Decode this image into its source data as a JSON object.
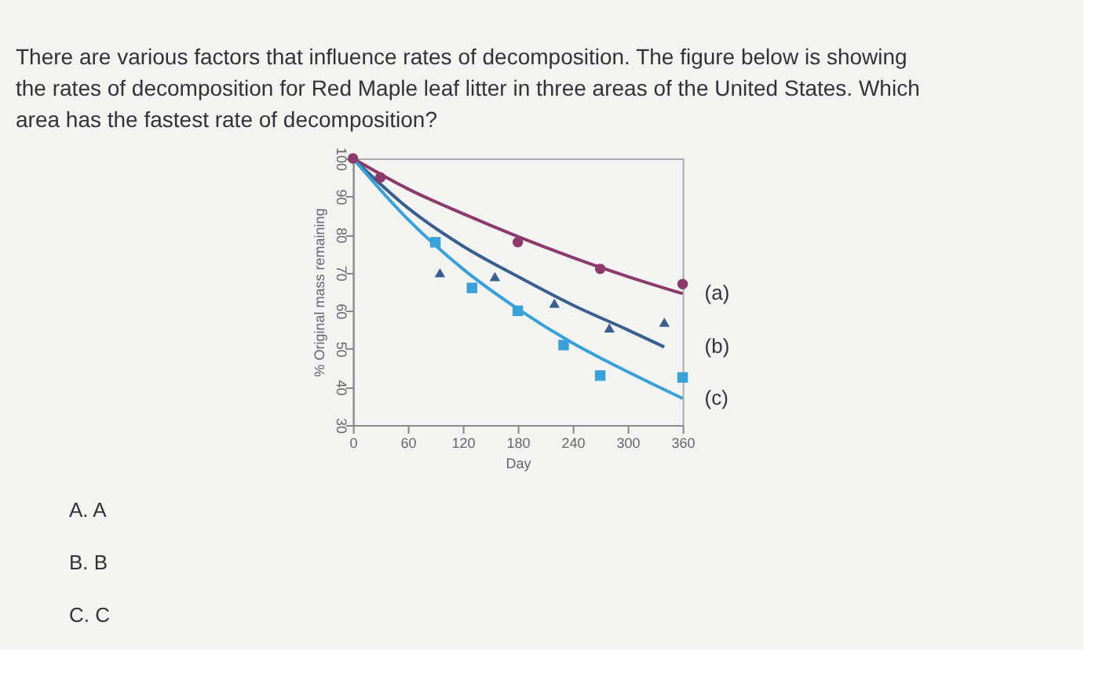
{
  "chart_data": {
    "type": "line",
    "title": "There are various factors that influence rates of decomposition. The figure below is showing the rates of decomposition for Red Maple leaf litter in three areas of the United States. Which area has the fastest rate of decomposition?",
    "xlabel": "Day",
    "ylabel": "% Original mass remaining",
    "xlim": [
      0,
      360
    ],
    "xticks": [
      0,
      60,
      120,
      180,
      240,
      300,
      360
    ],
    "ylim": [
      30,
      100
    ],
    "yticks": [
      30,
      40,
      50,
      60,
      70,
      80,
      90,
      100
    ],
    "grid": false,
    "series": [
      {
        "name": "(a)",
        "type": "line",
        "color": "#8b3a6b",
        "x": [
          0,
          60,
          120,
          180,
          240,
          300,
          360
        ],
        "values": [
          100,
          92,
          85.5,
          79.5,
          74,
          69,
          64.5
        ]
      },
      {
        "name": "(b)",
        "type": "line",
        "color": "#3a5f8f",
        "x": [
          0,
          60,
          120,
          180,
          240,
          300,
          340
        ],
        "values": [
          100,
          87,
          77,
          69,
          61.5,
          55,
          50.5
        ]
      },
      {
        "name": "(c)",
        "type": "line",
        "color": "#3aa0d8",
        "x": [
          0,
          60,
          120,
          180,
          240,
          300,
          360
        ],
        "values": [
          100,
          84,
          71,
          60.5,
          51.5,
          44,
          37
        ]
      },
      {
        "type": "scatter",
        "marker": "circle",
        "color": "#8b3a6b",
        "x": [
          0,
          30,
          180,
          270,
          360
        ],
        "values": [
          100,
          95,
          78,
          71,
          67
        ]
      },
      {
        "type": "scatter",
        "marker": "triangle",
        "color": "#3a5f8f",
        "x": [
          95,
          155,
          220,
          280,
          340
        ],
        "values": [
          70,
          69,
          62,
          55.5,
          57
        ]
      },
      {
        "type": "scatter",
        "marker": "square",
        "color": "#3aa0d8",
        "x": [
          90,
          130,
          180,
          230,
          270,
          360
        ],
        "values": [
          78,
          66,
          60,
          51,
          43,
          42.5
        ]
      }
    ],
    "annotations": [
      "A. A",
      "B. B",
      "C. C"
    ]
  }
}
